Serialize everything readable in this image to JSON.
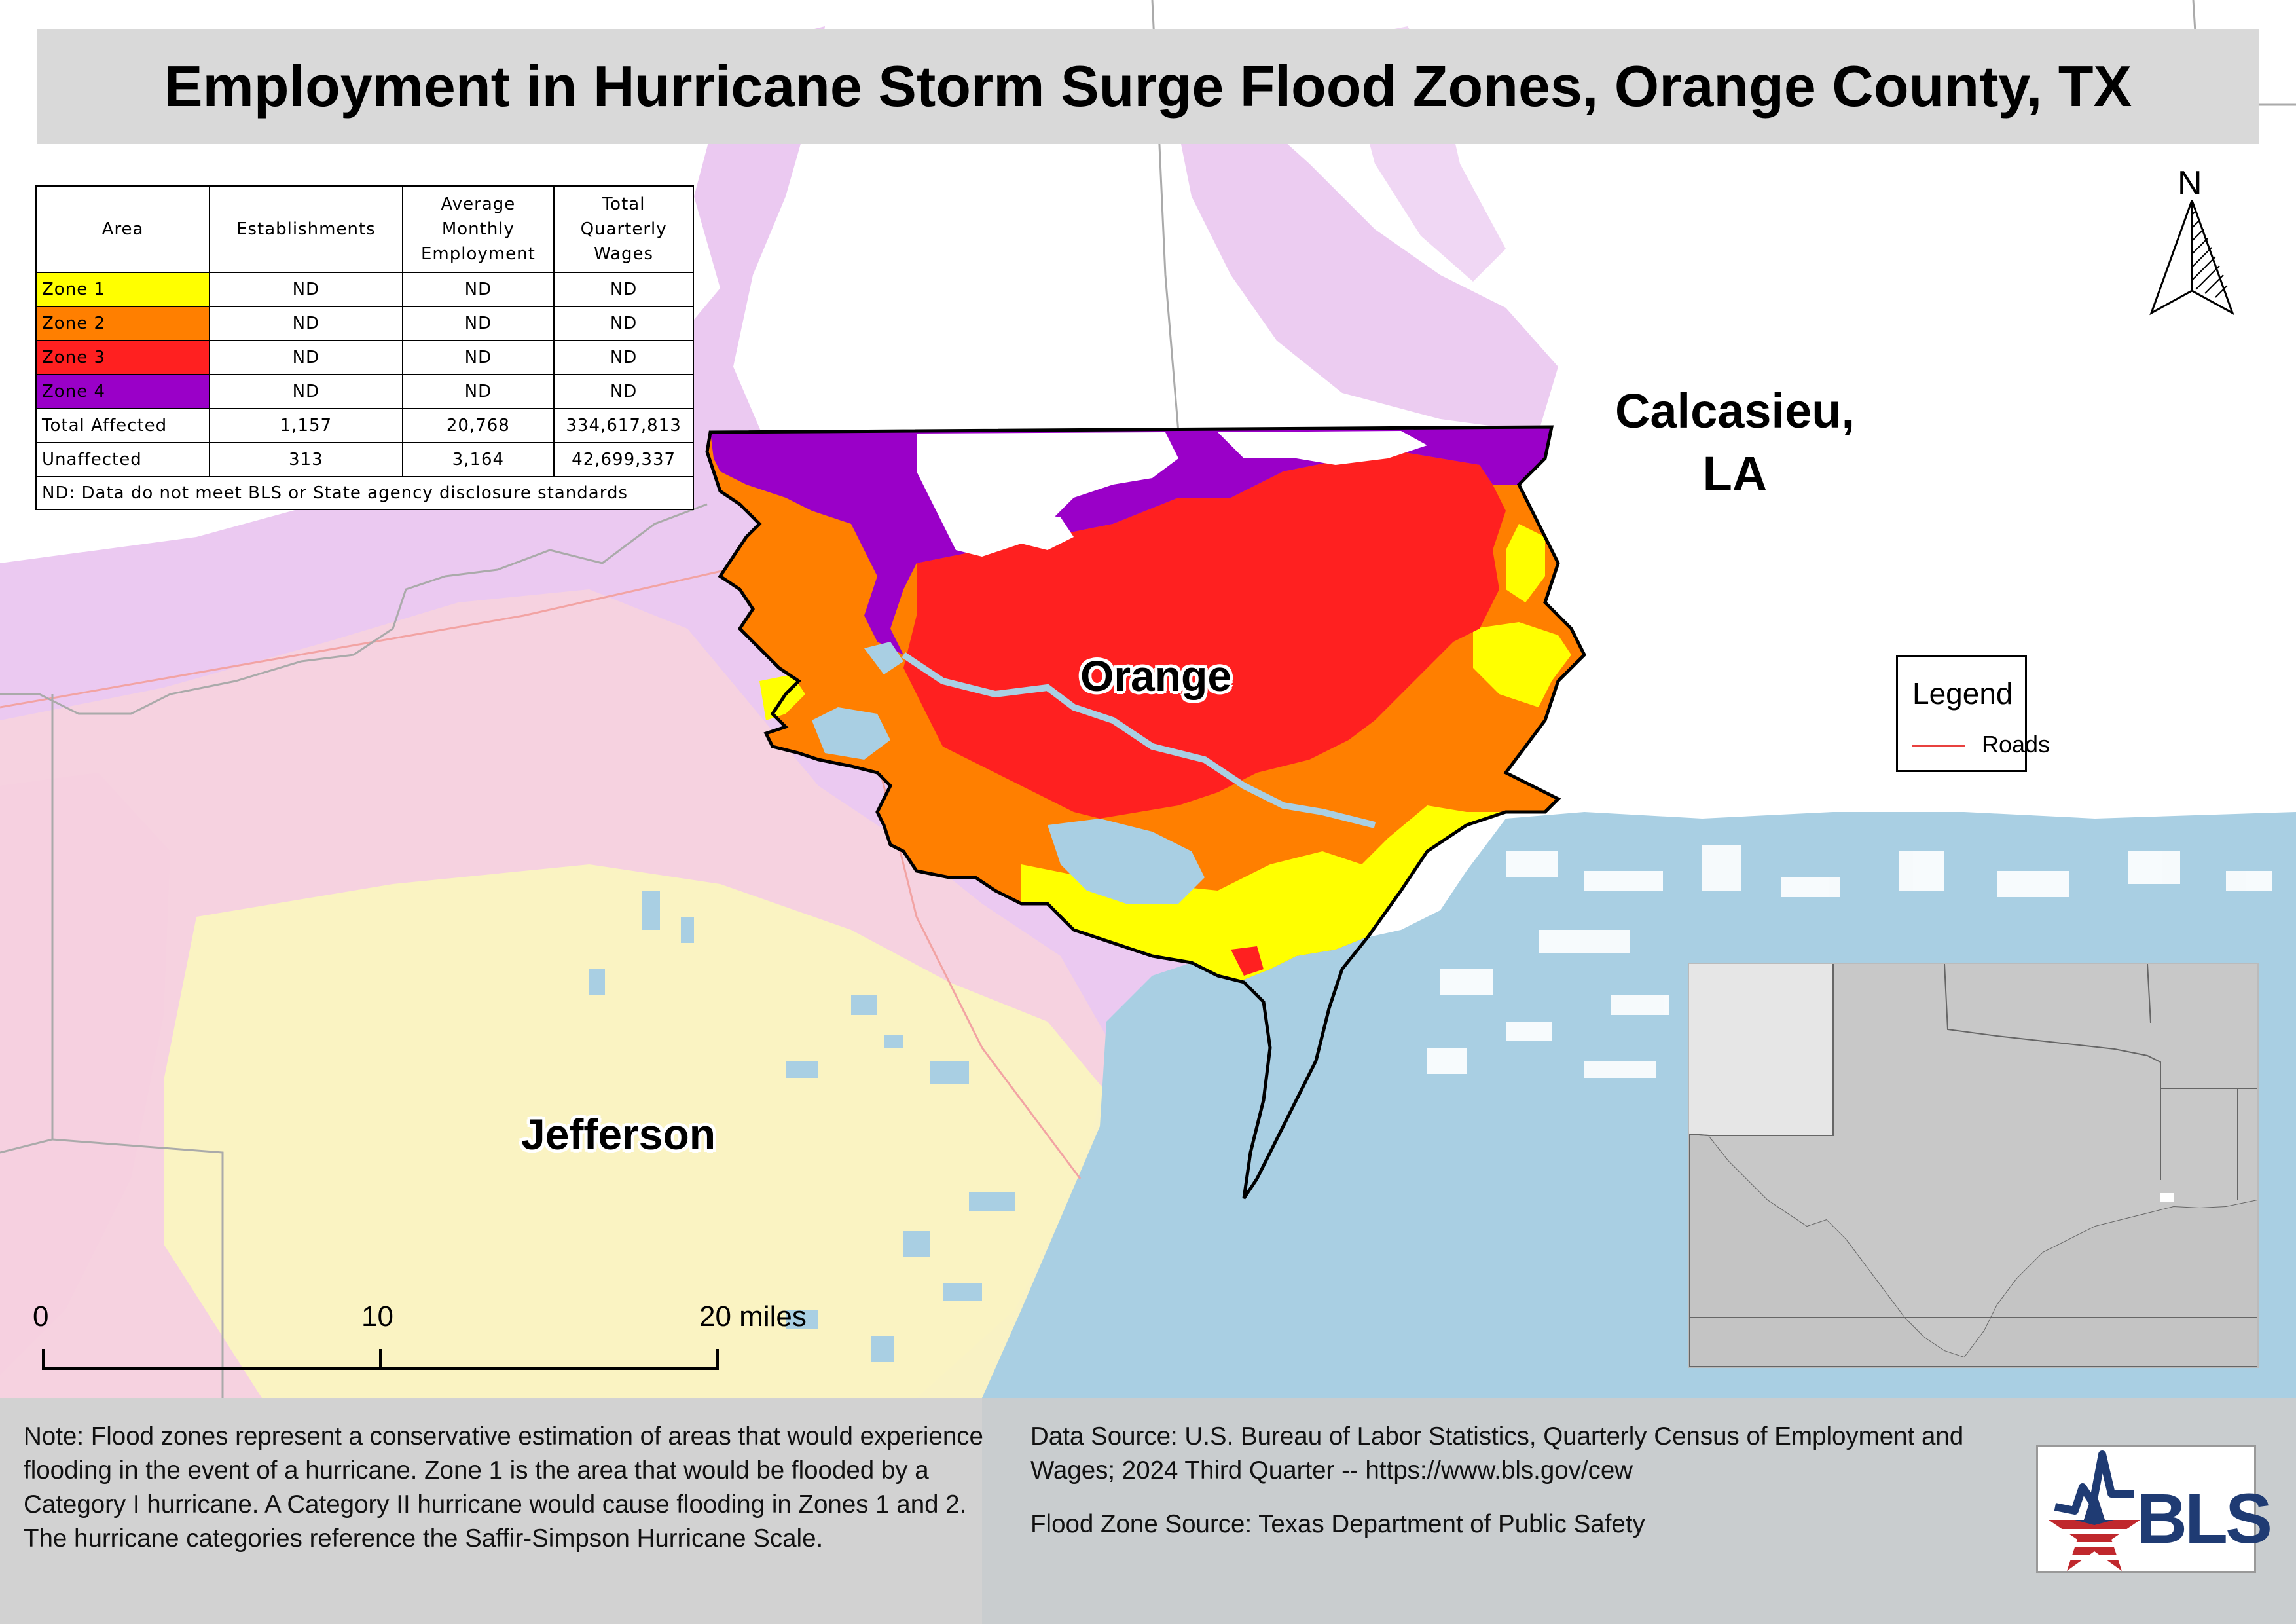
{
  "title": "Employment in Hurricane Storm Surge Flood Zones, Orange County, TX",
  "table": {
    "headers": [
      "Area",
      "Establishments",
      "Average Monthly Employment",
      "Total Quarterly Wages"
    ],
    "header_lines": [
      [
        "Area"
      ],
      [
        "Establishments"
      ],
      [
        "Average",
        "Monthly",
        "Employment"
      ],
      [
        "Total",
        "Quarterly",
        "Wages"
      ]
    ],
    "rows": [
      {
        "area": "Zone 1",
        "color": "#ffff00",
        "establishments": "ND",
        "employment": "ND",
        "wages": "ND"
      },
      {
        "area": "Zone 2",
        "color": "#ff7f00",
        "establishments": "ND",
        "employment": "ND",
        "wages": "ND"
      },
      {
        "area": "Zone 3",
        "color": "#ff2020",
        "establishments": "ND",
        "employment": "ND",
        "wages": "ND"
      },
      {
        "area": "Zone 4",
        "color": "#9a00c8",
        "establishments": "ND",
        "employment": "ND",
        "wages": "ND"
      },
      {
        "area": "Total Affected",
        "establishments": "1,157",
        "employment": "20,768",
        "wages": "334,617,813"
      },
      {
        "area": "Unaffected",
        "establishments": "313",
        "employment": "3,164",
        "wages": "42,699,337"
      }
    ],
    "footnote": "ND: Data do not meet BLS or State agency disclosure standards"
  },
  "labels": {
    "orange": "Orange",
    "jefferson": "Jefferson",
    "calcasieu_line1": "Calcasieu,",
    "calcasieu_line2": "LA"
  },
  "north": "N",
  "legend": {
    "title": "Legend",
    "item": "Roads",
    "road_color": "#e8413f"
  },
  "scale": {
    "zero": "0",
    "mid": "10",
    "end": "20 miles"
  },
  "note": "Note: Flood zones represent a conservative estimation of areas that would experience flooding in the event of a hurricane. Zone 1 is the area that would be flooded by a Category I hurricane. A Category II hurricane would cause flooding in Zones 1 and 2. The hurricane categories reference the Saffir-Simpson Hurricane Scale.",
  "source_data": "Data Source: U.S. Bureau of Labor Statistics, Quarterly Census of Employment and Wages; 2024 Third Quarter -- https://www.bls.gov/cew",
  "source_flood": "Flood Zone Source: Texas Department of Public Safety",
  "logo": "BLS",
  "colors": {
    "water": "#a9cfe3",
    "zone1": "#ffff00",
    "zone2": "#ff7f00",
    "zone3": "#ff2020",
    "zone4": "#9a00c8",
    "surrounding_light_purple": "#e9c3ef",
    "surrounding_light_pink": "#f8d3dd",
    "surrounding_light_yellow": "#fbf6bf"
  }
}
